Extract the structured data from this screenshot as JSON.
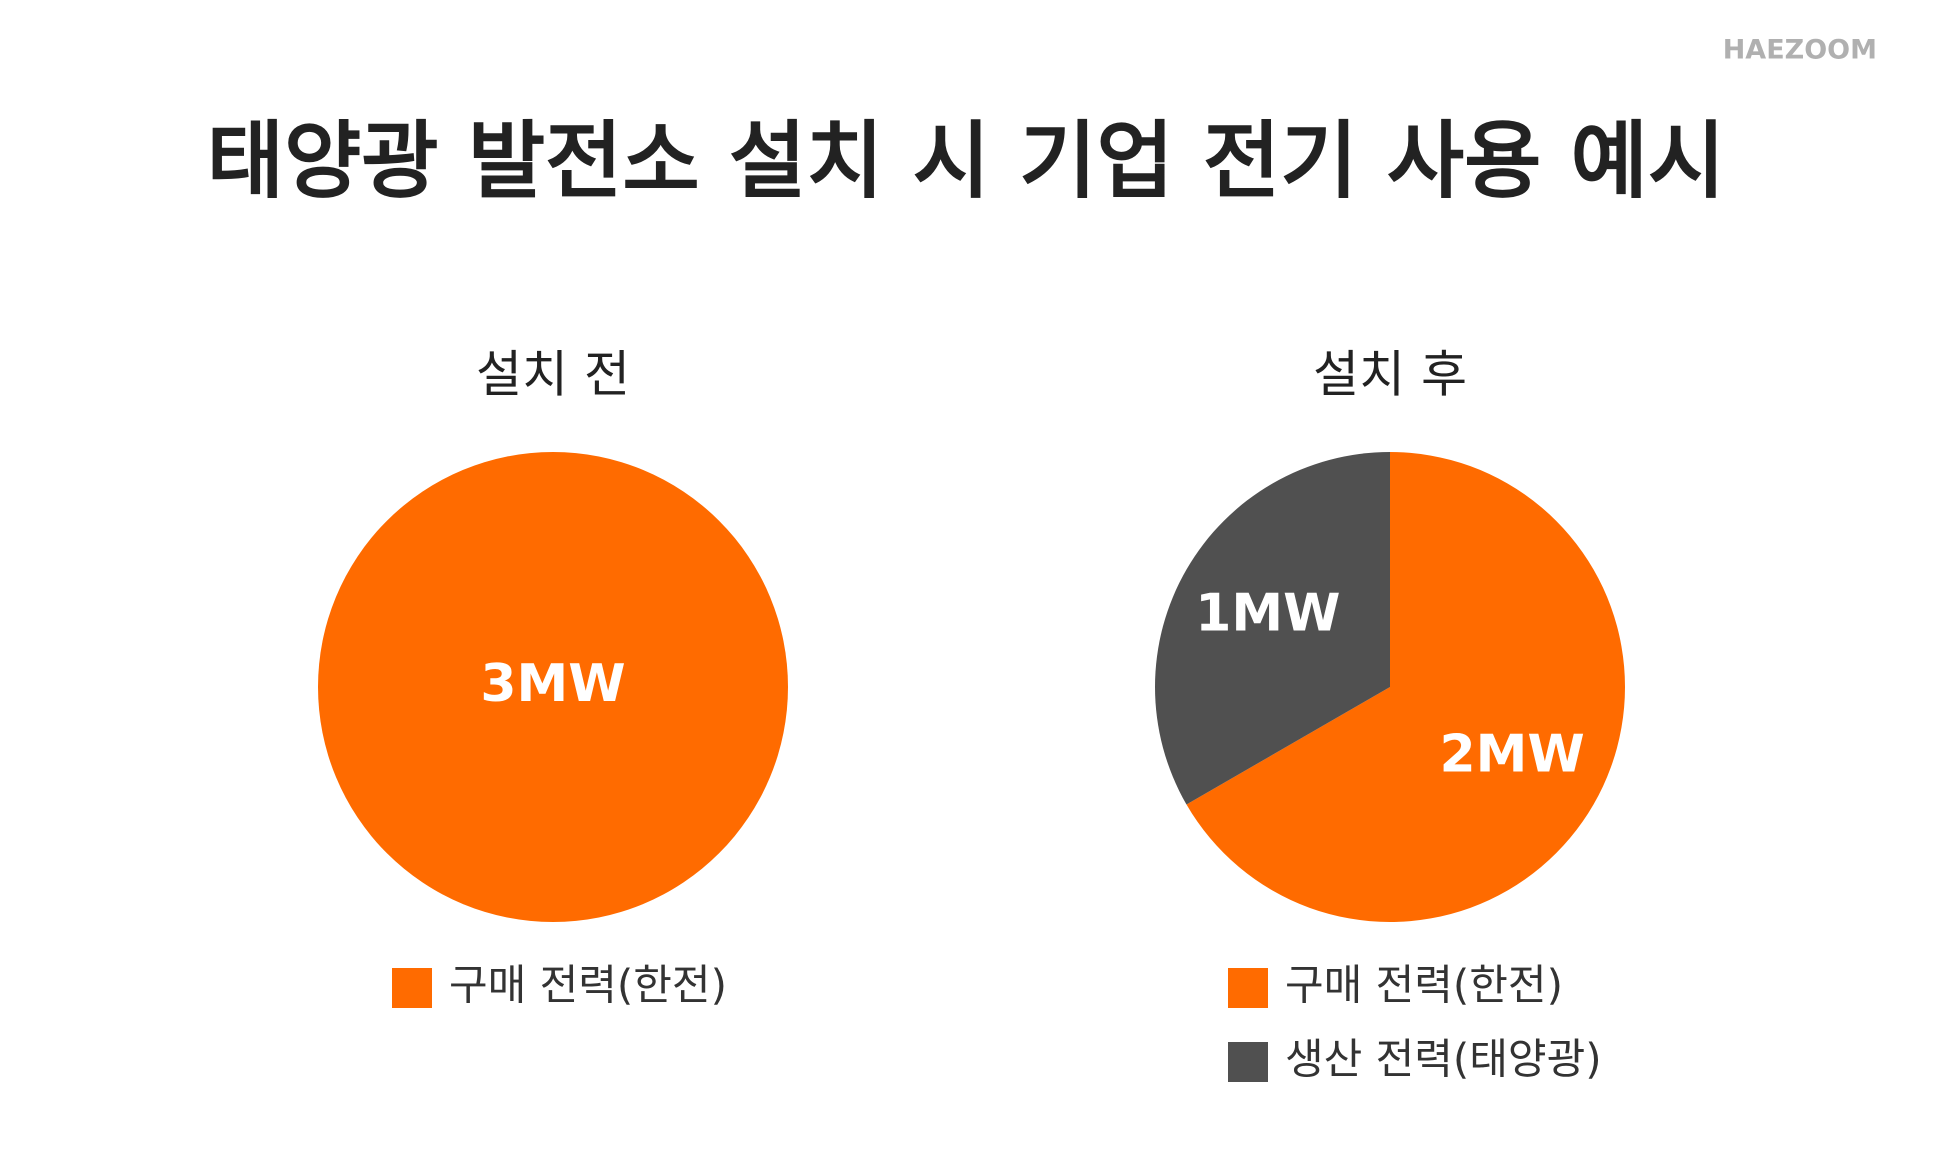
{
  "brand": "HAEZOOM",
  "title": "태양광 발전소 설치 시 기업 전기 사용 예시",
  "chart_data": [
    {
      "type": "pie",
      "title": "설치 전",
      "categories": [
        "구매 전력(한전)"
      ],
      "values": [
        3
      ],
      "value_labels": [
        "3MW"
      ],
      "colors": [
        "#ff6b00"
      ]
    },
    {
      "type": "pie",
      "title": "설치 후",
      "categories": [
        "구매 전력(한전)",
        "생산 전력(태양광)"
      ],
      "values": [
        2,
        1
      ],
      "value_labels": [
        "2MW",
        "1MW"
      ],
      "colors": [
        "#ff6b00",
        "#505050"
      ]
    }
  ]
}
